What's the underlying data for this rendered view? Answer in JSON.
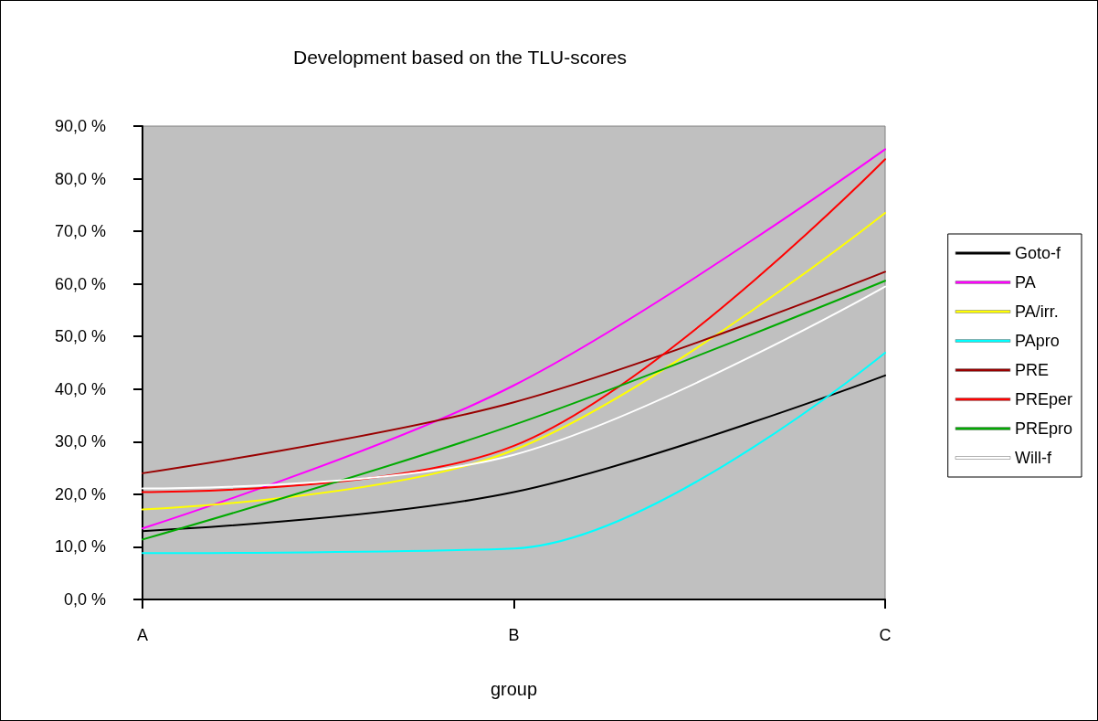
{
  "chart_data": {
    "type": "line",
    "title": "Development based on the TLU-scores",
    "xlabel": "group",
    "categories": [
      "A",
      "B",
      "C"
    ],
    "ylim": [
      0,
      90
    ],
    "yticks": [
      {
        "value": 0,
        "label": "0,0 %"
      },
      {
        "value": 10,
        "label": "10,0 %"
      },
      {
        "value": 20,
        "label": "20,0 %"
      },
      {
        "value": 30,
        "label": "30,0 %"
      },
      {
        "value": 40,
        "label": "40,0 %"
      },
      {
        "value": 50,
        "label": "50,0 %"
      },
      {
        "value": 60,
        "label": "60,0 %"
      },
      {
        "value": 70,
        "label": "70,0 %"
      },
      {
        "value": 80,
        "label": "80,0 %"
      },
      {
        "value": 90,
        "label": "90,0 %"
      }
    ],
    "legend": "right",
    "marker": "none",
    "line_style": "solid",
    "series": [
      {
        "name": "Goto-f",
        "color": "#000000",
        "values": [
          13.0,
          20.4,
          42.6
        ]
      },
      {
        "name": "PA",
        "color": "#ff00ff",
        "values": [
          13.5,
          40.7,
          85.6
        ]
      },
      {
        "name": "PA/irr.",
        "color": "#ffff00",
        "values": [
          17.1,
          28.4,
          73.5
        ]
      },
      {
        "name": "PApro",
        "color": "#00ffff",
        "values": [
          8.8,
          9.7,
          46.9
        ]
      },
      {
        "name": "PRE",
        "color": "#990000",
        "values": [
          24.0,
          37.5,
          62.3
        ]
      },
      {
        "name": "PREper",
        "color": "#ff0000",
        "values": [
          20.4,
          29.2,
          83.7
        ]
      },
      {
        "name": "PREpro",
        "color": "#00aa00",
        "values": [
          11.4,
          33.2,
          60.6
        ]
      },
      {
        "name": "Will-f",
        "color": "#ffffff",
        "values": [
          21.1,
          27.5,
          59.5
        ]
      }
    ]
  }
}
